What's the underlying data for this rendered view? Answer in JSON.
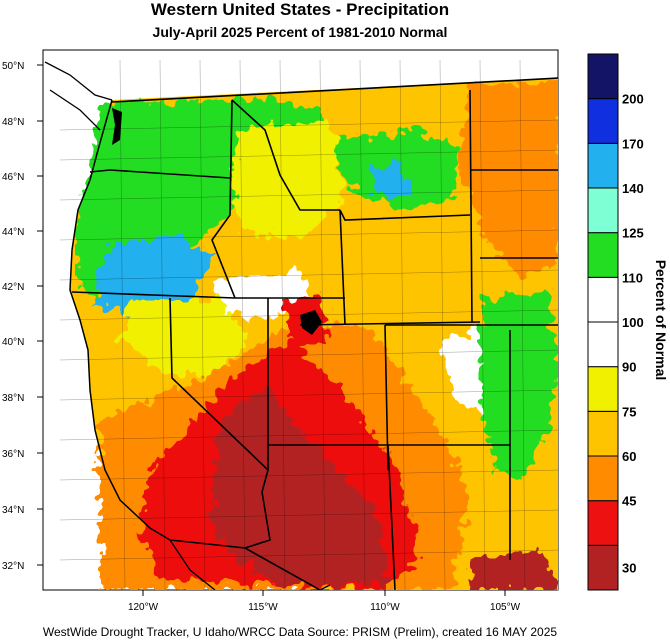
{
  "title": "Western United States - Precipitation",
  "subtitle": "July-April 2025  Percent of 1981-2010 Normal",
  "footer": "WestWide Drought Tracker, U Idaho/WRCC Data Source: PRISM (Prelim), created 16 MAY 2025",
  "lat_labels": [
    "50°N",
    "48°N",
    "46°N",
    "44°N",
    "42°N",
    "40°N",
    "38°N",
    "36°N",
    "34°N",
    "32°N"
  ],
  "lon_labels": [
    "120°W",
    "115°W",
    "110°W",
    "105°W"
  ],
  "legend": {
    "title": "Percent of Normal",
    "breaks": [
      "30",
      "45",
      "60",
      "75",
      "90",
      "100",
      "110",
      "125",
      "140",
      "170",
      "200"
    ],
    "colors": [
      "#b22222",
      "#ee1111",
      "#ff8c00",
      "#ffc400",
      "#f0f000",
      "#ffffff",
      "#ffffff",
      "#22dd22",
      "#7fffd4",
      "#22b0ee",
      "#1030e0",
      "#141466"
    ]
  },
  "colors": {
    "very_dry": "#b22222",
    "dry": "#ee1111",
    "moderately_dry": "#ff8c00",
    "below": "#ffc400",
    "slightly_below": "#f0f000",
    "normal": "#ffffff",
    "wet": "#22dd22",
    "very_wet": "#22b0ee",
    "ocean": "#ffffff"
  }
}
